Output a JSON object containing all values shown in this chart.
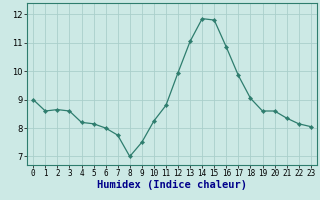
{
  "x": [
    0,
    1,
    2,
    3,
    4,
    5,
    6,
    7,
    8,
    9,
    10,
    11,
    12,
    13,
    14,
    15,
    16,
    17,
    18,
    19,
    20,
    21,
    22,
    23
  ],
  "y": [
    9.0,
    8.6,
    8.65,
    8.6,
    8.2,
    8.15,
    8.0,
    7.75,
    7.0,
    7.5,
    8.25,
    8.8,
    9.95,
    11.05,
    11.85,
    11.8,
    10.85,
    9.85,
    9.05,
    8.6,
    8.6,
    8.35,
    8.15,
    8.05
  ],
  "line_color": "#2e7d6e",
  "marker": "D",
  "marker_size": 2.2,
  "bg_color": "#cce9e5",
  "grid_color": "#aacfcb",
  "xlabel": "Humidex (Indice chaleur)",
  "xlabel_color": "#00008b",
  "ylim": [
    6.7,
    12.4
  ],
  "xlim": [
    -0.5,
    23.5
  ],
  "yticks": [
    7,
    8,
    9,
    10,
    11,
    12
  ],
  "xticks": [
    0,
    1,
    2,
    3,
    4,
    5,
    6,
    7,
    8,
    9,
    10,
    11,
    12,
    13,
    14,
    15,
    16,
    17,
    18,
    19,
    20,
    21,
    22,
    23
  ],
  "tick_fontsize": 5.5,
  "xlabel_fontsize": 7.5,
  "line_width": 0.9
}
